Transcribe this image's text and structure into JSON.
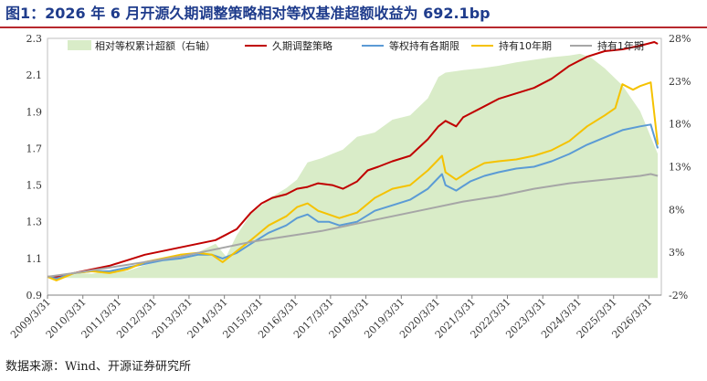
{
  "title": "图1：2026 年 6 月开源久期调整策略相对等权基准超额收益为 692.1bp",
  "source": "数据来源：Wind、开源证券研究所",
  "chart_data": {
    "type": "line",
    "x_ticks": [
      "2009/3/31",
      "2010/3/31",
      "2011/3/31",
      "2012/3/31",
      "2013/3/31",
      "2014/3/31",
      "2015/3/31",
      "2016/3/31",
      "2017/3/31",
      "2018/3/31",
      "2019/3/31",
      "2020/3/31",
      "2021/3/31",
      "2022/3/31",
      "2023/3/31",
      "2024/3/31",
      "2025/3/31",
      "2026/3/31"
    ],
    "y_left": {
      "min": 0.9,
      "max": 2.3,
      "ticks": [
        "0.9",
        "1.1",
        "1.3",
        "1.5",
        "1.7",
        "1.9",
        "2.1",
        "2.3"
      ]
    },
    "y_right": {
      "min": -2,
      "max": 28,
      "ticks": [
        "-2%",
        "3%",
        "8%",
        "13%",
        "18%",
        "23%",
        "28%"
      ]
    },
    "legend": [
      {
        "name": "相对等权累计超额（右轴）",
        "color": "#d9ecc8",
        "kind": "area"
      },
      {
        "name": "久期调整策略",
        "color": "#c00000",
        "kind": "line"
      },
      {
        "name": "等权持有各期限",
        "color": "#5b9bd5",
        "kind": "line"
      },
      {
        "name": "持有10年期",
        "color": "#f5c200",
        "kind": "line"
      },
      {
        "name": "持有1年期",
        "color": "#a6a6a6",
        "kind": "line"
      }
    ],
    "series": [
      {
        "name": "相对等权累计超额（右轴）",
        "axis": "right",
        "x": [
          2009.25,
          2009.7,
          2010.0,
          2010.5,
          2011.0,
          2011.5,
          2012.0,
          2012.5,
          2013.0,
          2013.5,
          2014.0,
          2014.3,
          2014.6,
          2015.0,
          2015.3,
          2015.6,
          2016.0,
          2016.3,
          2016.6,
          2017.0,
          2017.3,
          2017.6,
          2018.0,
          2018.5,
          2019.0,
          2019.5,
          2020.0,
          2020.3,
          2020.5,
          2021.0,
          2021.5,
          2022.0,
          2022.5,
          2023.0,
          2023.5,
          2024.0,
          2024.3,
          2024.6,
          2025.0,
          2025.5,
          2026.0,
          2026.5
        ],
        "values": [
          0,
          0.3,
          0.6,
          0.5,
          0.8,
          0.8,
          1.5,
          2.0,
          2.5,
          3.0,
          4.0,
          2.5,
          5.0,
          7.5,
          8.5,
          9.5,
          10.5,
          11.5,
          13.5,
          14.0,
          14.5,
          15.0,
          16.5,
          17.0,
          18.5,
          19.0,
          21.0,
          23.5,
          24.0,
          24.3,
          24.5,
          24.8,
          25.2,
          25.5,
          25.8,
          26.0,
          26.2,
          25.8,
          24.5,
          22.5,
          19.5,
          14.5
        ]
      },
      {
        "name": "久期调整策略",
        "axis": "left",
        "x": [
          2009.25,
          2009.5,
          2010.0,
          2010.5,
          2011.0,
          2011.5,
          2012.0,
          2012.5,
          2013.0,
          2013.5,
          2014.0,
          2014.3,
          2014.6,
          2015.0,
          2015.3,
          2015.6,
          2016.0,
          2016.3,
          2016.6,
          2016.9,
          2017.3,
          2017.6,
          2018.0,
          2018.3,
          2018.6,
          2019.0,
          2019.5,
          2020.0,
          2020.3,
          2020.5,
          2020.8,
          2021.0,
          2021.5,
          2022.0,
          2022.5,
          2023.0,
          2023.5,
          2024.0,
          2024.5,
          2025.0,
          2025.5,
          2026.0,
          2026.4,
          2026.5
        ],
        "values": [
          1.0,
          1.0,
          1.02,
          1.04,
          1.06,
          1.09,
          1.12,
          1.14,
          1.16,
          1.18,
          1.2,
          1.23,
          1.26,
          1.35,
          1.4,
          1.43,
          1.45,
          1.48,
          1.49,
          1.51,
          1.5,
          1.48,
          1.52,
          1.58,
          1.6,
          1.63,
          1.66,
          1.75,
          1.82,
          1.85,
          1.82,
          1.87,
          1.92,
          1.97,
          2.0,
          2.03,
          2.08,
          2.15,
          2.2,
          2.23,
          2.24,
          2.26,
          2.28,
          2.27
        ]
      },
      {
        "name": "等权持有各期限",
        "axis": "left",
        "x": [
          2009.25,
          2009.5,
          2010.0,
          2010.5,
          2011.0,
          2011.5,
          2012.0,
          2012.5,
          2013.0,
          2013.5,
          2013.9,
          2014.2,
          2014.6,
          2015.0,
          2015.5,
          2016.0,
          2016.3,
          2016.6,
          2016.9,
          2017.2,
          2017.5,
          2018.0,
          2018.5,
          2019.0,
          2019.5,
          2020.0,
          2020.4,
          2020.5,
          2020.8,
          2021.2,
          2021.6,
          2022.0,
          2022.5,
          2023.0,
          2023.5,
          2024.0,
          2024.5,
          2025.0,
          2025.5,
          2026.0,
          2026.3,
          2026.5
        ],
        "values": [
          1.0,
          0.99,
          1.02,
          1.03,
          1.03,
          1.05,
          1.07,
          1.09,
          1.1,
          1.12,
          1.12,
          1.1,
          1.13,
          1.18,
          1.24,
          1.28,
          1.32,
          1.34,
          1.3,
          1.3,
          1.28,
          1.3,
          1.36,
          1.39,
          1.42,
          1.48,
          1.56,
          1.5,
          1.47,
          1.52,
          1.55,
          1.57,
          1.59,
          1.6,
          1.63,
          1.67,
          1.72,
          1.76,
          1.8,
          1.82,
          1.83,
          1.7
        ]
      },
      {
        "name": "持有10年期",
        "axis": "left",
        "x": [
          2009.25,
          2009.5,
          2010.0,
          2010.5,
          2011.0,
          2011.5,
          2012.0,
          2012.5,
          2013.0,
          2013.5,
          2013.9,
          2014.2,
          2014.6,
          2015.0,
          2015.5,
          2016.0,
          2016.3,
          2016.6,
          2016.9,
          2017.2,
          2017.5,
          2018.0,
          2018.5,
          2019.0,
          2019.5,
          2020.0,
          2020.4,
          2020.5,
          2020.8,
          2021.2,
          2021.6,
          2022.0,
          2022.5,
          2023.0,
          2023.5,
          2024.0,
          2024.5,
          2025.0,
          2025.3,
          2025.5,
          2025.8,
          2026.0,
          2026.3,
          2026.5
        ],
        "values": [
          1.0,
          0.98,
          1.02,
          1.03,
          1.02,
          1.04,
          1.08,
          1.1,
          1.12,
          1.13,
          1.12,
          1.08,
          1.14,
          1.2,
          1.28,
          1.33,
          1.38,
          1.4,
          1.36,
          1.34,
          1.32,
          1.35,
          1.43,
          1.48,
          1.5,
          1.58,
          1.66,
          1.57,
          1.53,
          1.58,
          1.62,
          1.63,
          1.64,
          1.66,
          1.69,
          1.74,
          1.82,
          1.88,
          1.92,
          2.05,
          2.02,
          2.04,
          2.06,
          1.72
        ]
      },
      {
        "name": "持有1年期",
        "axis": "left",
        "x": [
          2009.25,
          2010.0,
          2011.0,
          2012.0,
          2013.0,
          2014.0,
          2015.0,
          2016.0,
          2017.0,
          2018.0,
          2019.0,
          2020.0,
          2021.0,
          2022.0,
          2023.0,
          2024.0,
          2025.0,
          2026.0,
          2026.3,
          2026.5
        ],
        "values": [
          1.0,
          1.02,
          1.05,
          1.08,
          1.11,
          1.15,
          1.19,
          1.22,
          1.25,
          1.29,
          1.33,
          1.37,
          1.41,
          1.44,
          1.48,
          1.51,
          1.53,
          1.55,
          1.56,
          1.55
        ]
      }
    ]
  }
}
